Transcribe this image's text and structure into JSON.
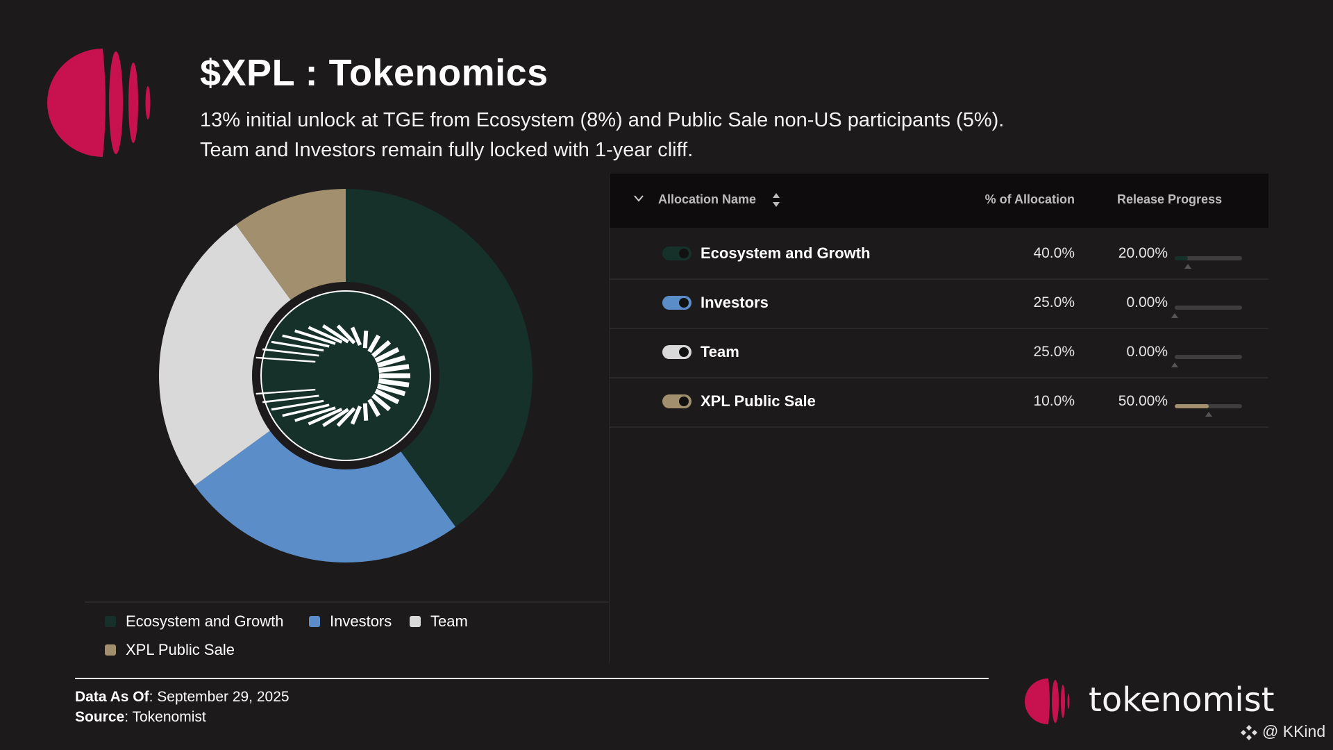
{
  "header": {
    "title": "$XPL : Tokenomics",
    "subtitle_line1": "13% initial unlock at TGE from Ecosystem (8%) and Public Sale non-US participants (5%).",
    "subtitle_line2": "Team and Investors remain fully locked with 1-year cliff.",
    "logo_color": "#c8114f"
  },
  "table": {
    "columns": [
      "Allocation Name",
      "% of Allocation",
      "Release Progress"
    ],
    "rows": [
      {
        "name": "Ecosystem and Growth",
        "allocation": "40.0%",
        "progress_label": "20.00%",
        "progress": 20,
        "color": "#16302a"
      },
      {
        "name": "Investors",
        "allocation": "25.0%",
        "progress_label": "0.00%",
        "progress": 0,
        "color": "#5b8dc9"
      },
      {
        "name": "Team",
        "allocation": "25.0%",
        "progress_label": "0.00%",
        "progress": 0,
        "color": "#d9d9d9"
      },
      {
        "name": "XPL Public Sale",
        "allocation": "10.0%",
        "progress_label": "50.00%",
        "progress": 50,
        "color": "#a18f6e"
      }
    ]
  },
  "chart_data": {
    "type": "pie",
    "donut": true,
    "categories": [
      "Ecosystem and Growth",
      "Investors",
      "Team",
      "XPL Public Sale"
    ],
    "values": [
      40,
      25,
      25,
      10
    ],
    "colors": [
      "#16302a",
      "#5b8dc9",
      "#d9d9d9",
      "#a18f6e"
    ],
    "legend": [
      "Ecosystem and Growth",
      "Investors",
      "Team",
      "XPL Public Sale"
    ],
    "legend_placement": "bottom"
  },
  "footer": {
    "data_as_of_label": "Data As Of",
    "data_as_of_value": ": September 29, 2025",
    "source_label": "Source",
    "source_value": ": Tokenomist",
    "brand": "tokenomist",
    "watermark": "@ KKind"
  }
}
